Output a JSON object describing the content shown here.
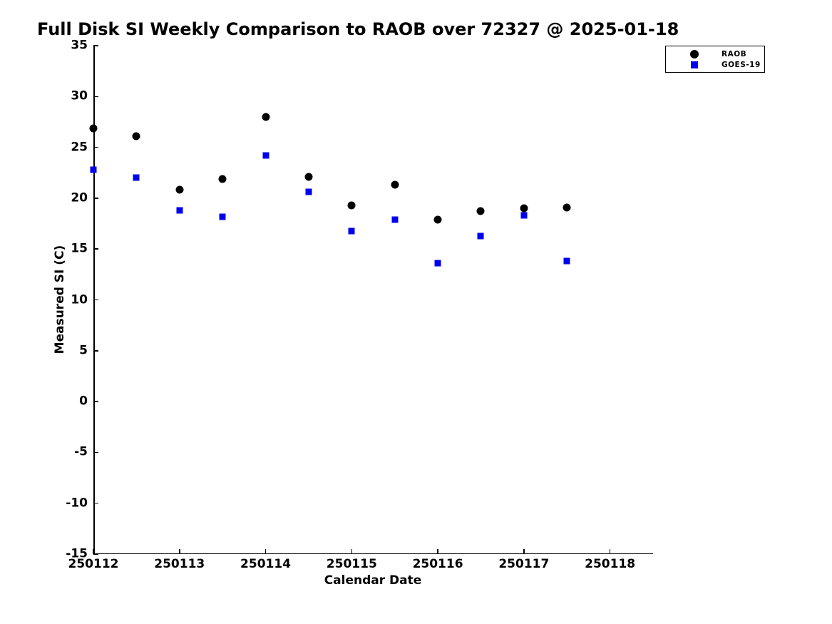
{
  "chart_data": {
    "type": "scatter",
    "title": "Full Disk SI Weekly Comparison to RAOB over 72327 @ 2025-01-18",
    "xlabel": "Calendar Date",
    "ylabel": "Measured SI (C)",
    "xlim": [
      250112,
      250118.5
    ],
    "ylim": [
      -15,
      35
    ],
    "x_ticks": [
      250112,
      250113,
      250114,
      250115,
      250116,
      250117,
      250118
    ],
    "y_ticks": [
      35,
      30,
      25,
      20,
      15,
      10,
      5,
      0,
      -5,
      -10,
      -15
    ],
    "grid": false,
    "legend_position": "outside-top-right",
    "x": [
      250112.0,
      250112.5,
      250113.0,
      250113.5,
      250114.0,
      250114.5,
      250115.0,
      250115.5,
      250116.0,
      250116.5,
      250117.0,
      250117.5
    ],
    "series": [
      {
        "name": "RAOB",
        "marker": "circle",
        "color": "#000000",
        "values": [
          26.9,
          26.1,
          20.8,
          21.9,
          28.0,
          22.1,
          19.3,
          21.3,
          17.9,
          18.7,
          19.0,
          19.1
        ]
      },
      {
        "name": "GOES-19",
        "marker": "square",
        "color": "#0000ee",
        "values": [
          22.8,
          22.0,
          18.8,
          18.2,
          24.2,
          20.6,
          16.8,
          17.9,
          13.6,
          16.3,
          18.3,
          13.8
        ]
      }
    ]
  }
}
